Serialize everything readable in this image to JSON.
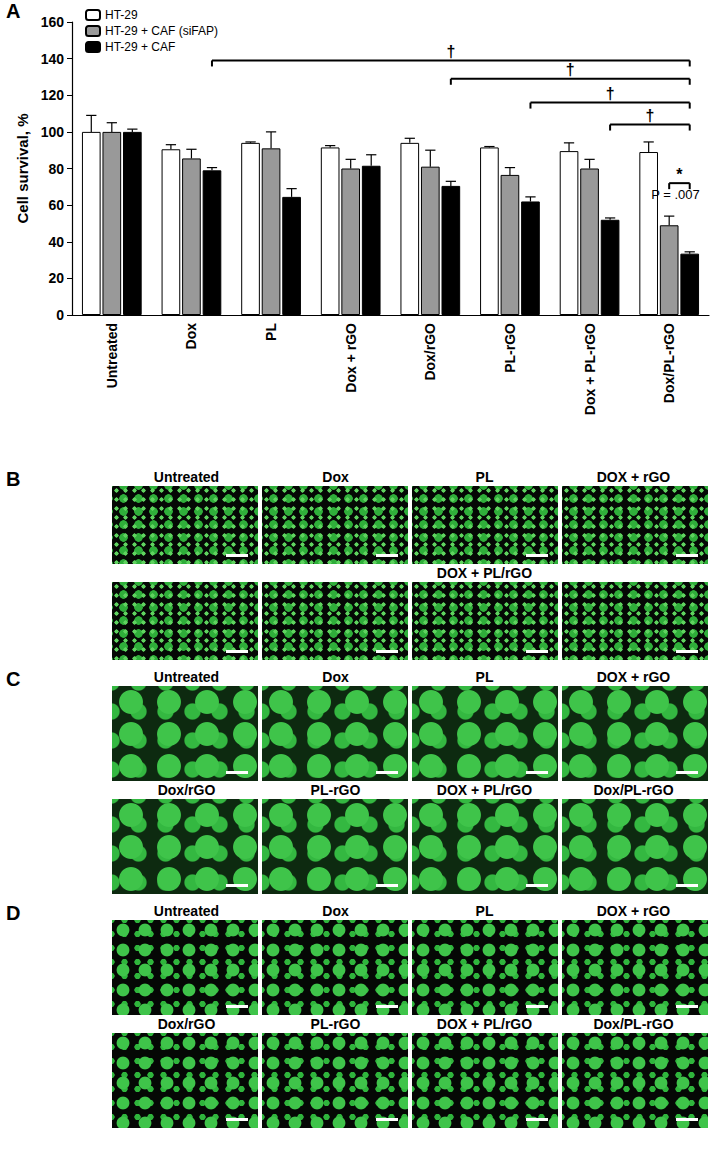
{
  "chart_data": {
    "type": "bar",
    "panel_label": "A",
    "y_label": "Cell survival, %",
    "categories": [
      "Untreated",
      "Dox",
      "PL",
      "Dox + rGO",
      "Dox/rGO",
      "PL-rGO",
      "Dox + PL-rGO",
      "Dox/PL-rGO"
    ],
    "series": [
      {
        "name": "HT-29",
        "color": "#ffffff",
        "values": [
          100,
          90.5,
          94,
          91.5,
          94,
          91.5,
          89.5,
          89
        ],
        "errors": [
          9,
          2.5,
          0.5,
          1,
          2.5,
          0.5,
          4.5,
          5.5
        ]
      },
      {
        "name": "HT-29 + CAF (siFAP)",
        "color": "#999999",
        "values": [
          100,
          85.5,
          91,
          80,
          81,
          76.5,
          80,
          49
        ],
        "errors": [
          5,
          5,
          9,
          5,
          9,
          4,
          5,
          5
        ]
      },
      {
        "name": "HT-29 + CAF",
        "color": "#000000",
        "values": [
          100,
          79,
          64.5,
          81.5,
          70.5,
          62,
          52,
          33.5
        ],
        "errors": [
          1.5,
          1.5,
          4.5,
          6,
          2.5,
          2.5,
          1,
          1
        ]
      }
    ],
    "ylim": [
      0,
      160
    ],
    "yticks": [
      0,
      20,
      40,
      60,
      80,
      100,
      120,
      140,
      160
    ],
    "grid": false,
    "legend": "upper left",
    "annotations": [
      {
        "from": "Dox",
        "to": "Dox/PL-rGO",
        "series": "HT-29 + CAF",
        "y": 139,
        "label": "†"
      },
      {
        "from": "Dox/rGO",
        "to": "Dox/PL-rGO",
        "series": "HT-29 + CAF",
        "y": 129,
        "label": "†"
      },
      {
        "from": "PL-rGO",
        "to": "Dox/PL-rGO",
        "series": "HT-29 + CAF",
        "y": 116,
        "label": "†"
      },
      {
        "from": "Dox + PL-rGO",
        "to": "Dox/PL-rGO",
        "series": "HT-29 + CAF",
        "y": 104,
        "label": "†"
      },
      {
        "category": "Dox/PL-rGO",
        "from_series": "HT-29 + CAF (siFAP)",
        "to_series": "HT-29 + CAF",
        "y": 72,
        "label": "*",
        "note": "P = .007"
      }
    ]
  },
  "image_panels": [
    {
      "panel_label": "B",
      "rows": [
        [
          "Untreated",
          "Dox",
          "PL",
          "DOX + rGO"
        ],
        [
          null,
          null,
          "DOX + PL/rGO",
          null
        ]
      ]
    },
    {
      "panel_label": "C",
      "rows": [
        [
          "Untreated",
          "Dox",
          "PL",
          "DOX + rGO"
        ],
        [
          "Dox/rGO",
          "PL-rGO",
          "DOX + PL/rGO",
          "Dox/PL-rGO"
        ]
      ]
    },
    {
      "panel_label": "D",
      "rows": [
        [
          "Untreated",
          "Dox",
          "PL",
          "DOX + rGO"
        ],
        [
          "Dox/rGO",
          "PL-rGO",
          "DOX + PL/rGO",
          "Dox/PL-rGO"
        ]
      ]
    }
  ]
}
